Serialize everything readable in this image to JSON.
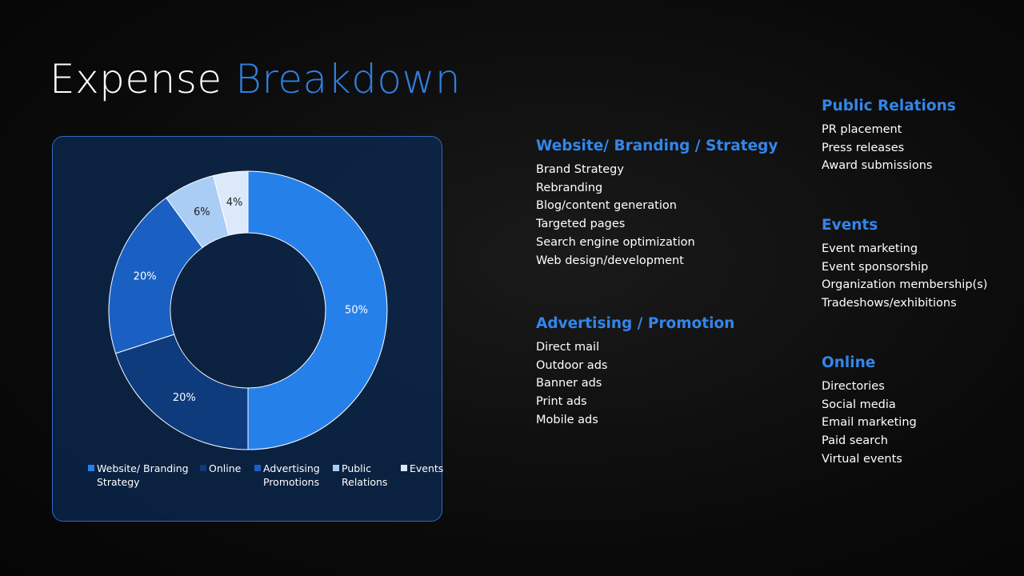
{
  "title": {
    "main": "Expense",
    "accent": "Breakdown"
  },
  "chart_data": {
    "type": "donut",
    "categories": [
      "Website/ Branding Strategy",
      "Online",
      "Advertising Promotions",
      "Public Relations",
      "Events"
    ],
    "values": [
      50,
      20,
      20,
      6,
      4
    ],
    "value_labels": [
      "50%",
      "20%",
      "20%",
      "6%",
      "4%"
    ],
    "colors": [
      "#2680ea",
      "#0d3b7c",
      "#1a60c2",
      "#a9cdf5",
      "#dce9fb"
    ],
    "label_colors": [
      "#ffffff",
      "#ffffff",
      "#ffffff",
      "#222222",
      "#222222"
    ]
  },
  "sections": [
    {
      "heading": "Website/ Branding / Strategy",
      "items": [
        "Brand Strategy",
        "Rebranding",
        "Blog/content generation",
        "Targeted pages",
        "Search engine optimization",
        "Web design/development"
      ]
    },
    {
      "heading": "Advertising / Promotion",
      "items": [
        "Direct mail",
        "Outdoor ads",
        "Banner ads",
        "Print ads",
        "Mobile ads"
      ]
    },
    {
      "heading": "Public Relations",
      "items": [
        "PR placement",
        "Press releases",
        "Award submissions"
      ]
    },
    {
      "heading": "Events",
      "items": [
        "Event marketing",
        "Event sponsorship",
        "Organization membership(s)",
        "Tradeshows/exhibitions"
      ]
    },
    {
      "heading": "Online",
      "items": [
        "Directories",
        "Social media",
        "Email marketing",
        "Paid search",
        "Virtual events"
      ]
    }
  ]
}
